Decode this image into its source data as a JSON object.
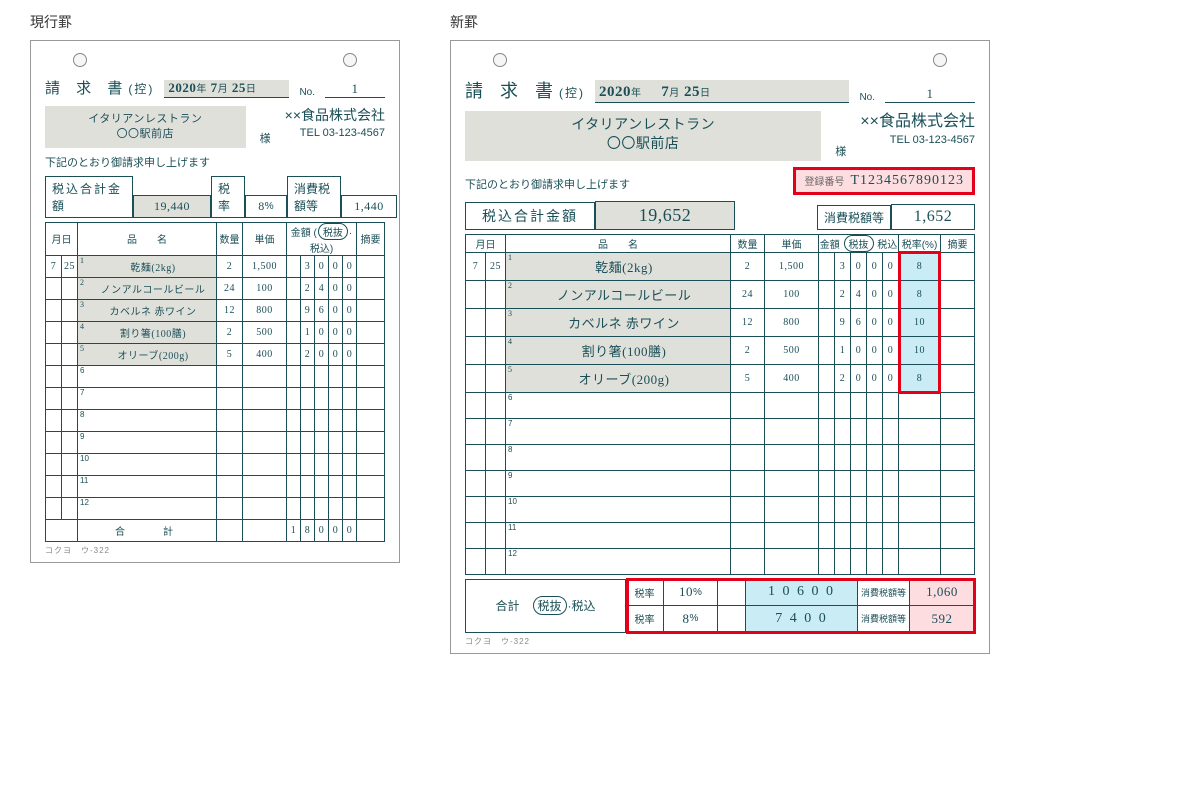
{
  "labels": {
    "left_title": "現行罫",
    "right_title": "新罫",
    "invoice": "請 求 書",
    "copy": "(控)",
    "no": "No.",
    "sama": "様",
    "notice": "下記のとおり御請求申し上げます",
    "regnum_label": "登録番号",
    "total_incl": "税込合計金額",
    "rate_l": "税率",
    "pct": "%",
    "tax_l": "消費税額等",
    "th_md": "月日",
    "th_item": "品　　名",
    "th_qty": "数量",
    "th_price": "単価",
    "th_amt": "金額",
    "th_excl": "税抜",
    "th_incl": "税込",
    "th_rate": "税率(%)",
    "th_note": "摘要",
    "subtotal": "合　　計",
    "subtotal_r": "合計",
    "year": "年",
    "month": "月",
    "day": "日",
    "code": "コクヨ　ウ-322"
  },
  "common": {
    "date_y": "2020",
    "date_m": "7",
    "date_d": "25",
    "invoice_no": "1",
    "customer_l1": "イタリアンレストラン",
    "customer_l2": "〇〇駅前店",
    "supplier_name": "××食品株式会社",
    "supplier_tel": "TEL 03-123-4567"
  },
  "left": {
    "total_incl": "19,440",
    "tax_rate": "8",
    "tax_amt": "1,440",
    "items": [
      {
        "m": "7",
        "d": "25",
        "name": "乾麺(2kg)",
        "qty": "2",
        "price": "1,500",
        "amt": [
          "",
          "3",
          "0",
          "0",
          "0"
        ]
      },
      {
        "m": "",
        "d": "",
        "name": "ノンアルコールビール",
        "qty": "24",
        "price": "100",
        "amt": [
          "",
          "2",
          "4",
          "0",
          "0"
        ]
      },
      {
        "m": "",
        "d": "",
        "name": "カベルネ 赤ワイン",
        "qty": "12",
        "price": "800",
        "amt": [
          "",
          "9",
          "6",
          "0",
          "0"
        ]
      },
      {
        "m": "",
        "d": "",
        "name": "割り箸(100膳)",
        "qty": "2",
        "price": "500",
        "amt": [
          "",
          "1",
          "0",
          "0",
          "0"
        ]
      },
      {
        "m": "",
        "d": "",
        "name": "オリーブ(200g)",
        "qty": "5",
        "price": "400",
        "amt": [
          "",
          "2",
          "0",
          "0",
          "0"
        ]
      }
    ],
    "blank_rows": 7,
    "subtotal_amt": [
      "1",
      "8",
      "0",
      "0",
      "0"
    ]
  },
  "right": {
    "regnum": "T1234567890123",
    "total_incl": "19,652",
    "tax_amt": "1,652",
    "items": [
      {
        "m": "7",
        "d": "25",
        "name": "乾麺(2kg)",
        "qty": "2",
        "price": "1,500",
        "amt": [
          "",
          "3",
          "0",
          "0",
          "0"
        ],
        "rate": "8"
      },
      {
        "m": "",
        "d": "",
        "name": "ノンアルコールビール",
        "qty": "24",
        "price": "100",
        "amt": [
          "",
          "2",
          "4",
          "0",
          "0"
        ],
        "rate": "8"
      },
      {
        "m": "",
        "d": "",
        "name": "カベルネ 赤ワイン",
        "qty": "12",
        "price": "800",
        "amt": [
          "",
          "9",
          "6",
          "0",
          "0"
        ],
        "rate": "10"
      },
      {
        "m": "",
        "d": "",
        "name": "割り箸(100膳)",
        "qty": "2",
        "price": "500",
        "amt": [
          "",
          "1",
          "0",
          "0",
          "0"
        ],
        "rate": "10"
      },
      {
        "m": "",
        "d": "",
        "name": "オリーブ(200g)",
        "qty": "5",
        "price": "400",
        "amt": [
          "",
          "2",
          "0",
          "0",
          "0"
        ],
        "rate": "8"
      }
    ],
    "blank_rows": 7,
    "breakdown": [
      {
        "rate": "10",
        "amt": "1 0 6 0 0",
        "tax": "1,060",
        "amt_hl": "hl-blue",
        "tax_hl": "hl-pink"
      },
      {
        "rate": "8",
        "amt": "7 4 0 0",
        "tax": "592",
        "amt_hl": "hl-blue",
        "tax_hl": "hl-pink"
      }
    ]
  },
  "colors": {
    "ink": "#1a4f57",
    "highlight_red": "#e2001a",
    "highlight_blue": "#c9ecf5",
    "highlight_pink": "#fddde0",
    "fill_grey": "#e0e0db"
  }
}
